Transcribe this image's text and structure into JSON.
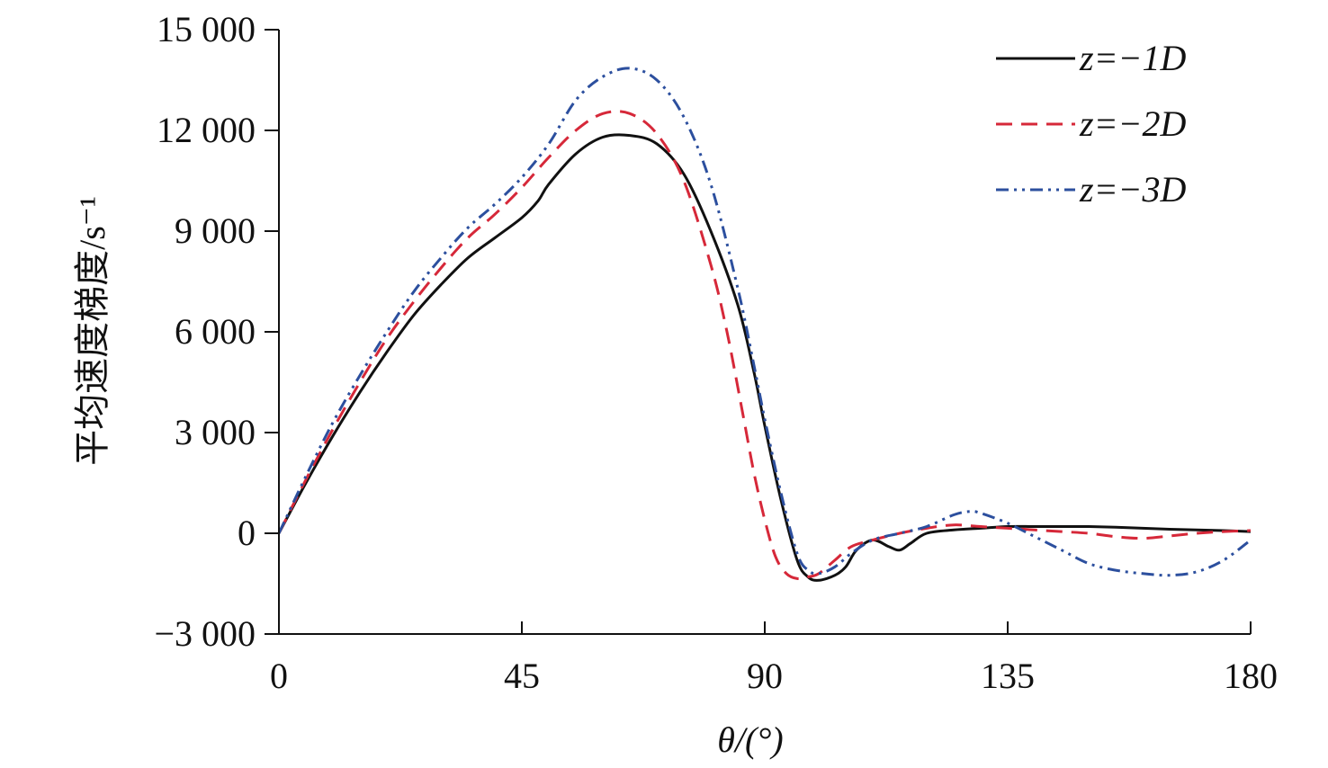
{
  "chart_data": {
    "type": "line",
    "title": "",
    "xlabel": "θ/(°)",
    "ylabel": "平均速度梯度/s⁻¹",
    "xlim": [
      0,
      180
    ],
    "ylim": [
      -3000,
      15000
    ],
    "x_ticks": [
      0,
      45,
      90,
      135,
      180
    ],
    "x_tick_labels": [
      "0",
      "45",
      "90",
      "135",
      "180"
    ],
    "y_ticks": [
      -3000,
      0,
      3000,
      6000,
      9000,
      12000,
      15000
    ],
    "y_tick_labels": [
      "−3 000",
      "0",
      "3 000",
      "6 000",
      "9 000",
      "12 000",
      "15 000"
    ],
    "grid": false,
    "legend_position": "top-right",
    "series": [
      {
        "name": "z=−1D",
        "color": "#111111",
        "style": "solid",
        "x": [
          0,
          5,
          10,
          15,
          20,
          25,
          30,
          35,
          40,
          45,
          48,
          50,
          55,
          60,
          65,
          70,
          75,
          80,
          85,
          88,
          90,
          93,
          96,
          98,
          100,
          103,
          105,
          107,
          110,
          113,
          115,
          117,
          120,
          125,
          130,
          135,
          140,
          145,
          150,
          155,
          160,
          165,
          170,
          175,
          180
        ],
        "y": [
          0,
          1500,
          2900,
          4200,
          5400,
          6500,
          7400,
          8200,
          8800,
          9400,
          9900,
          10400,
          11300,
          11800,
          11850,
          11600,
          10700,
          9000,
          6800,
          4800,
          3200,
          1000,
          -800,
          -1300,
          -1400,
          -1250,
          -1000,
          -500,
          -200,
          -400,
          -500,
          -300,
          0,
          100,
          150,
          200,
          200,
          200,
          200,
          180,
          150,
          120,
          100,
          80,
          50
        ]
      },
      {
        "name": "z=−2D",
        "color": "#d62839",
        "style": "dashed",
        "x": [
          0,
          5,
          10,
          15,
          20,
          25,
          30,
          35,
          40,
          45,
          50,
          55,
          60,
          65,
          70,
          75,
          80,
          83,
          86,
          88,
          90,
          92,
          94,
          96,
          98,
          100,
          103,
          106,
          110,
          115,
          120,
          125,
          130,
          135,
          140,
          145,
          150,
          155,
          160,
          165,
          170,
          175,
          180
        ],
        "y": [
          0,
          1600,
          3100,
          4500,
          5800,
          6900,
          7900,
          8800,
          9500,
          10300,
          11200,
          12000,
          12500,
          12500,
          11900,
          10500,
          8000,
          6000,
          3500,
          1800,
          400,
          -700,
          -1200,
          -1350,
          -1300,
          -1200,
          -800,
          -400,
          -200,
          0,
          150,
          250,
          200,
          150,
          100,
          50,
          0,
          -100,
          -150,
          -80,
          0,
          50,
          80
        ]
      },
      {
        "name": "z=−3D",
        "color": "#2c4f9e",
        "style": "dashdot",
        "x": [
          0,
          5,
          10,
          15,
          20,
          25,
          30,
          35,
          40,
          45,
          50,
          55,
          60,
          65,
          70,
          75,
          80,
          85,
          88,
          90,
          93,
          96,
          98,
          100,
          103,
          106,
          110,
          115,
          120,
          125,
          128,
          130,
          135,
          140,
          145,
          150,
          155,
          160,
          165,
          170,
          175,
          180
        ],
        "y": [
          0,
          1700,
          3300,
          4700,
          6000,
          7200,
          8200,
          9100,
          9800,
          10600,
          11600,
          12900,
          13600,
          13850,
          13500,
          12400,
          10400,
          7300,
          5000,
          3400,
          1200,
          -600,
          -1100,
          -1200,
          -1000,
          -600,
          -200,
          0,
          200,
          550,
          650,
          600,
          300,
          -100,
          -500,
          -900,
          -1100,
          -1200,
          -1250,
          -1150,
          -800,
          -200
        ]
      }
    ]
  }
}
